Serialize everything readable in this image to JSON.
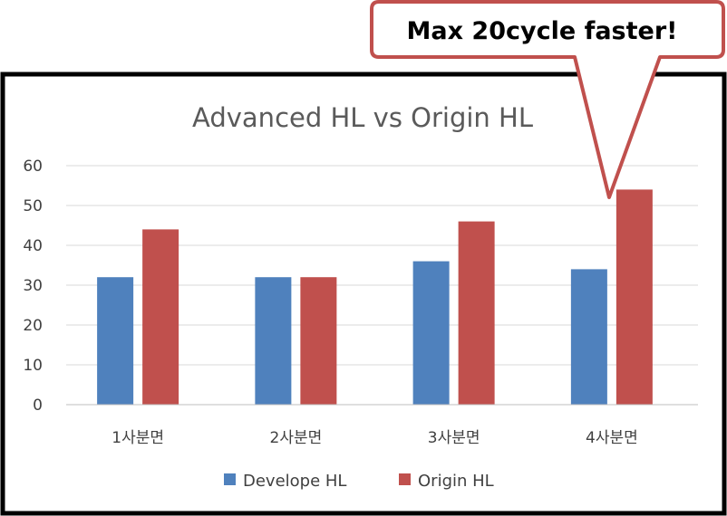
{
  "callout": {
    "text": "Max 20cycle faster!"
  },
  "colors": {
    "develope": "#4f81bd",
    "origin": "#c0504d",
    "grid": "#d9d9d9",
    "frame": "#000000",
    "callout_border": "#c0504d"
  },
  "chart_data": {
    "type": "bar",
    "title": "Advanced HL vs Origin HL",
    "categories": [
      "1사분면",
      "2사분면",
      "3사분면",
      "4사분면"
    ],
    "series": [
      {
        "name": "Develope HL",
        "values": [
          32,
          32,
          36,
          34
        ]
      },
      {
        "name": "Origin HL",
        "values": [
          44,
          32,
          46,
          54
        ]
      }
    ],
    "yticks": [
      "0",
      "10",
      "20",
      "30",
      "40",
      "50",
      "60"
    ],
    "ylim": [
      0,
      60
    ],
    "xlabel": "",
    "ylabel": "",
    "grid": true,
    "legend": "bottom"
  }
}
